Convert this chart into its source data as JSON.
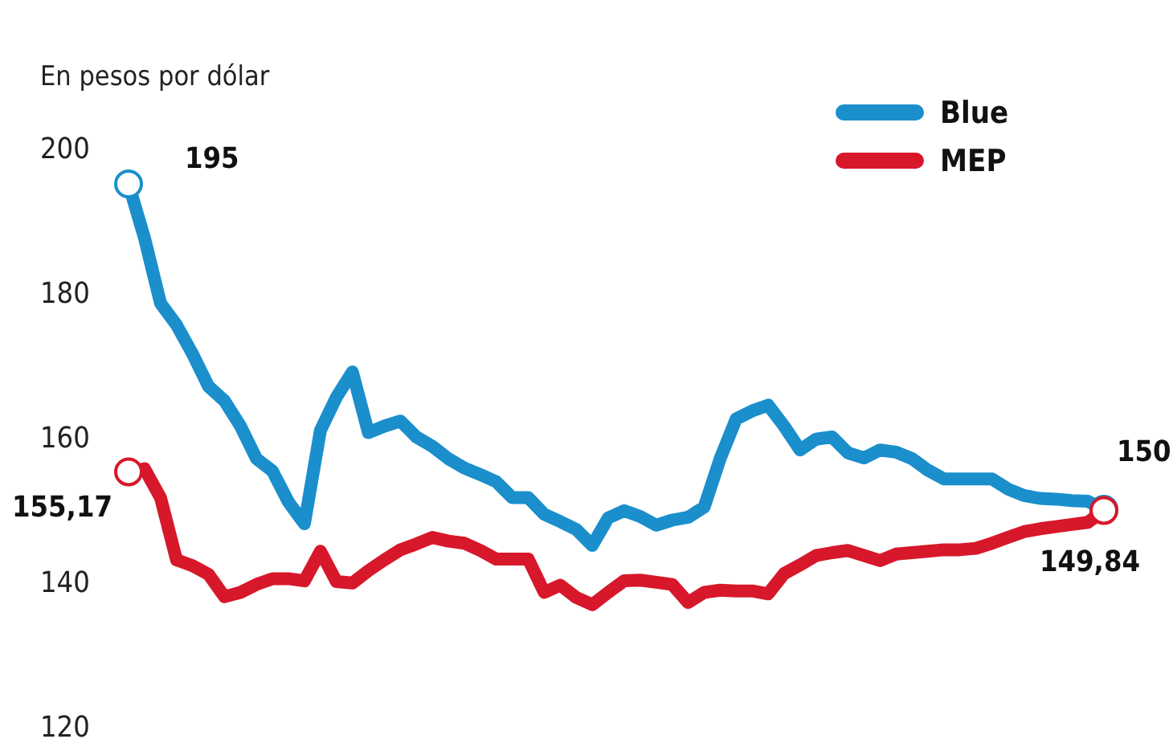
{
  "chart_data": {
    "type": "line",
    "ylabel": "En pesos por dólar",
    "ylim": [
      120,
      200
    ],
    "yticks": [
      120,
      140,
      160,
      180,
      200
    ],
    "tick_labels": "y",
    "grid": false,
    "legend": "top right",
    "line_style": "solid",
    "categories": [
      null,
      null,
      null,
      null,
      null,
      null,
      null,
      null,
      null,
      null,
      null,
      null,
      null,
      null,
      null,
      null,
      null,
      null,
      null,
      null,
      null,
      null,
      null,
      null,
      null,
      null,
      null,
      null,
      null,
      null,
      null,
      null,
      null,
      null,
      null,
      null,
      null,
      null,
      null,
      null,
      null,
      null,
      null,
      null,
      null,
      null,
      null,
      null,
      null,
      null,
      null,
      null,
      null,
      null,
      null,
      null,
      null,
      null,
      null,
      null,
      null,
      null
    ],
    "series": [
      {
        "name": "Blue",
        "color": "#1a8fcc",
        "values": [
          195,
          187.5,
          178.5,
          175.5,
          171.5,
          167,
          165,
          161.5,
          157,
          155.3,
          151,
          148,
          160.9,
          165.5,
          169,
          160.6,
          161.5,
          162.2,
          160,
          158.7,
          157,
          155.7,
          154.8,
          153.8,
          151.6,
          151.6,
          149.3,
          148.3,
          147.2,
          145,
          148.8,
          149.8,
          149,
          147.8,
          148.5,
          148.9,
          150.3,
          157,
          162.5,
          163.6,
          164.4,
          161.5,
          158.2,
          159.7,
          160,
          157.8,
          157.1,
          158.2,
          157.9,
          157,
          155.4,
          154.2,
          154.2,
          154.2,
          154.2,
          152.8,
          151.9,
          151.5,
          151.4,
          151.2,
          151.1,
          150
        ],
        "value_labels": [
          "195",
          null,
          null,
          null,
          null,
          null,
          null,
          null,
          null,
          null,
          null,
          null,
          null,
          null,
          null,
          null,
          null,
          null,
          null,
          null,
          null,
          null,
          null,
          null,
          null,
          null,
          null,
          null,
          null,
          null,
          null,
          null,
          null,
          null,
          null,
          null,
          null,
          null,
          null,
          null,
          null,
          null,
          null,
          null,
          null,
          null,
          null,
          null,
          null,
          null,
          null,
          null,
          null,
          null,
          null,
          null,
          null,
          null,
          null,
          null,
          null,
          "150"
        ]
      },
      {
        "name": "MEP",
        "color": "#d7182a",
        "values": [
          155.17,
          155.6,
          151.6,
          143,
          142.2,
          141,
          137.9,
          138.5,
          139.6,
          140.4,
          140.4,
          140.1,
          144.2,
          140,
          139.8,
          141.5,
          143,
          144.4,
          145.2,
          146.1,
          145.6,
          145.3,
          144.3,
          143.1,
          143.1,
          143.1,
          138.5,
          139.5,
          137.8,
          136.8,
          138.5,
          140.1,
          140.2,
          139.9,
          139.6,
          137.1,
          138.5,
          138.8,
          138.7,
          138.7,
          138.3,
          141.1,
          142.3,
          143.6,
          144,
          144.3,
          143.6,
          142.9,
          143.8,
          144,
          144.2,
          144.4,
          144.4,
          144.6,
          145.3,
          146.1,
          146.9,
          147.3,
          147.6,
          147.9,
          148.2,
          149.84
        ],
        "value_labels": [
          "155,17",
          null,
          null,
          null,
          null,
          null,
          null,
          null,
          null,
          null,
          null,
          null,
          null,
          null,
          null,
          null,
          null,
          null,
          null,
          null,
          null,
          null,
          null,
          null,
          null,
          null,
          null,
          null,
          null,
          null,
          null,
          null,
          null,
          null,
          null,
          null,
          null,
          null,
          null,
          null,
          null,
          null,
          null,
          null,
          null,
          null,
          null,
          null,
          null,
          null,
          null,
          null,
          null,
          null,
          null,
          null,
          null,
          null,
          null,
          null,
          null,
          "149,84"
        ]
      }
    ]
  }
}
